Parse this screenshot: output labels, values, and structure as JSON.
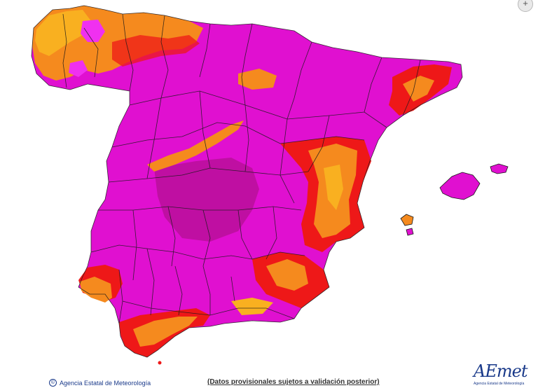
{
  "footer": {
    "copyright_symbol": "©",
    "agency": "Agencia Estatal de Meteorología",
    "disclaimer": "(Datos provisionales sujetos a validación posterior)"
  },
  "logo": {
    "text": "AEmet",
    "subtitle": "Agencia Estatal de Meteorología"
  },
  "controls": {
    "zoom_symbol": "+"
  },
  "colors": {
    "magenta": "#e010d0",
    "dark_magenta": "#b0108e",
    "light_magenta": "#f030f0",
    "red": "#ee1818",
    "orange": "#f58a1e",
    "yellow_orange": "#f9b020",
    "border": "#1a1a1a",
    "background": "#ffffff"
  }
}
